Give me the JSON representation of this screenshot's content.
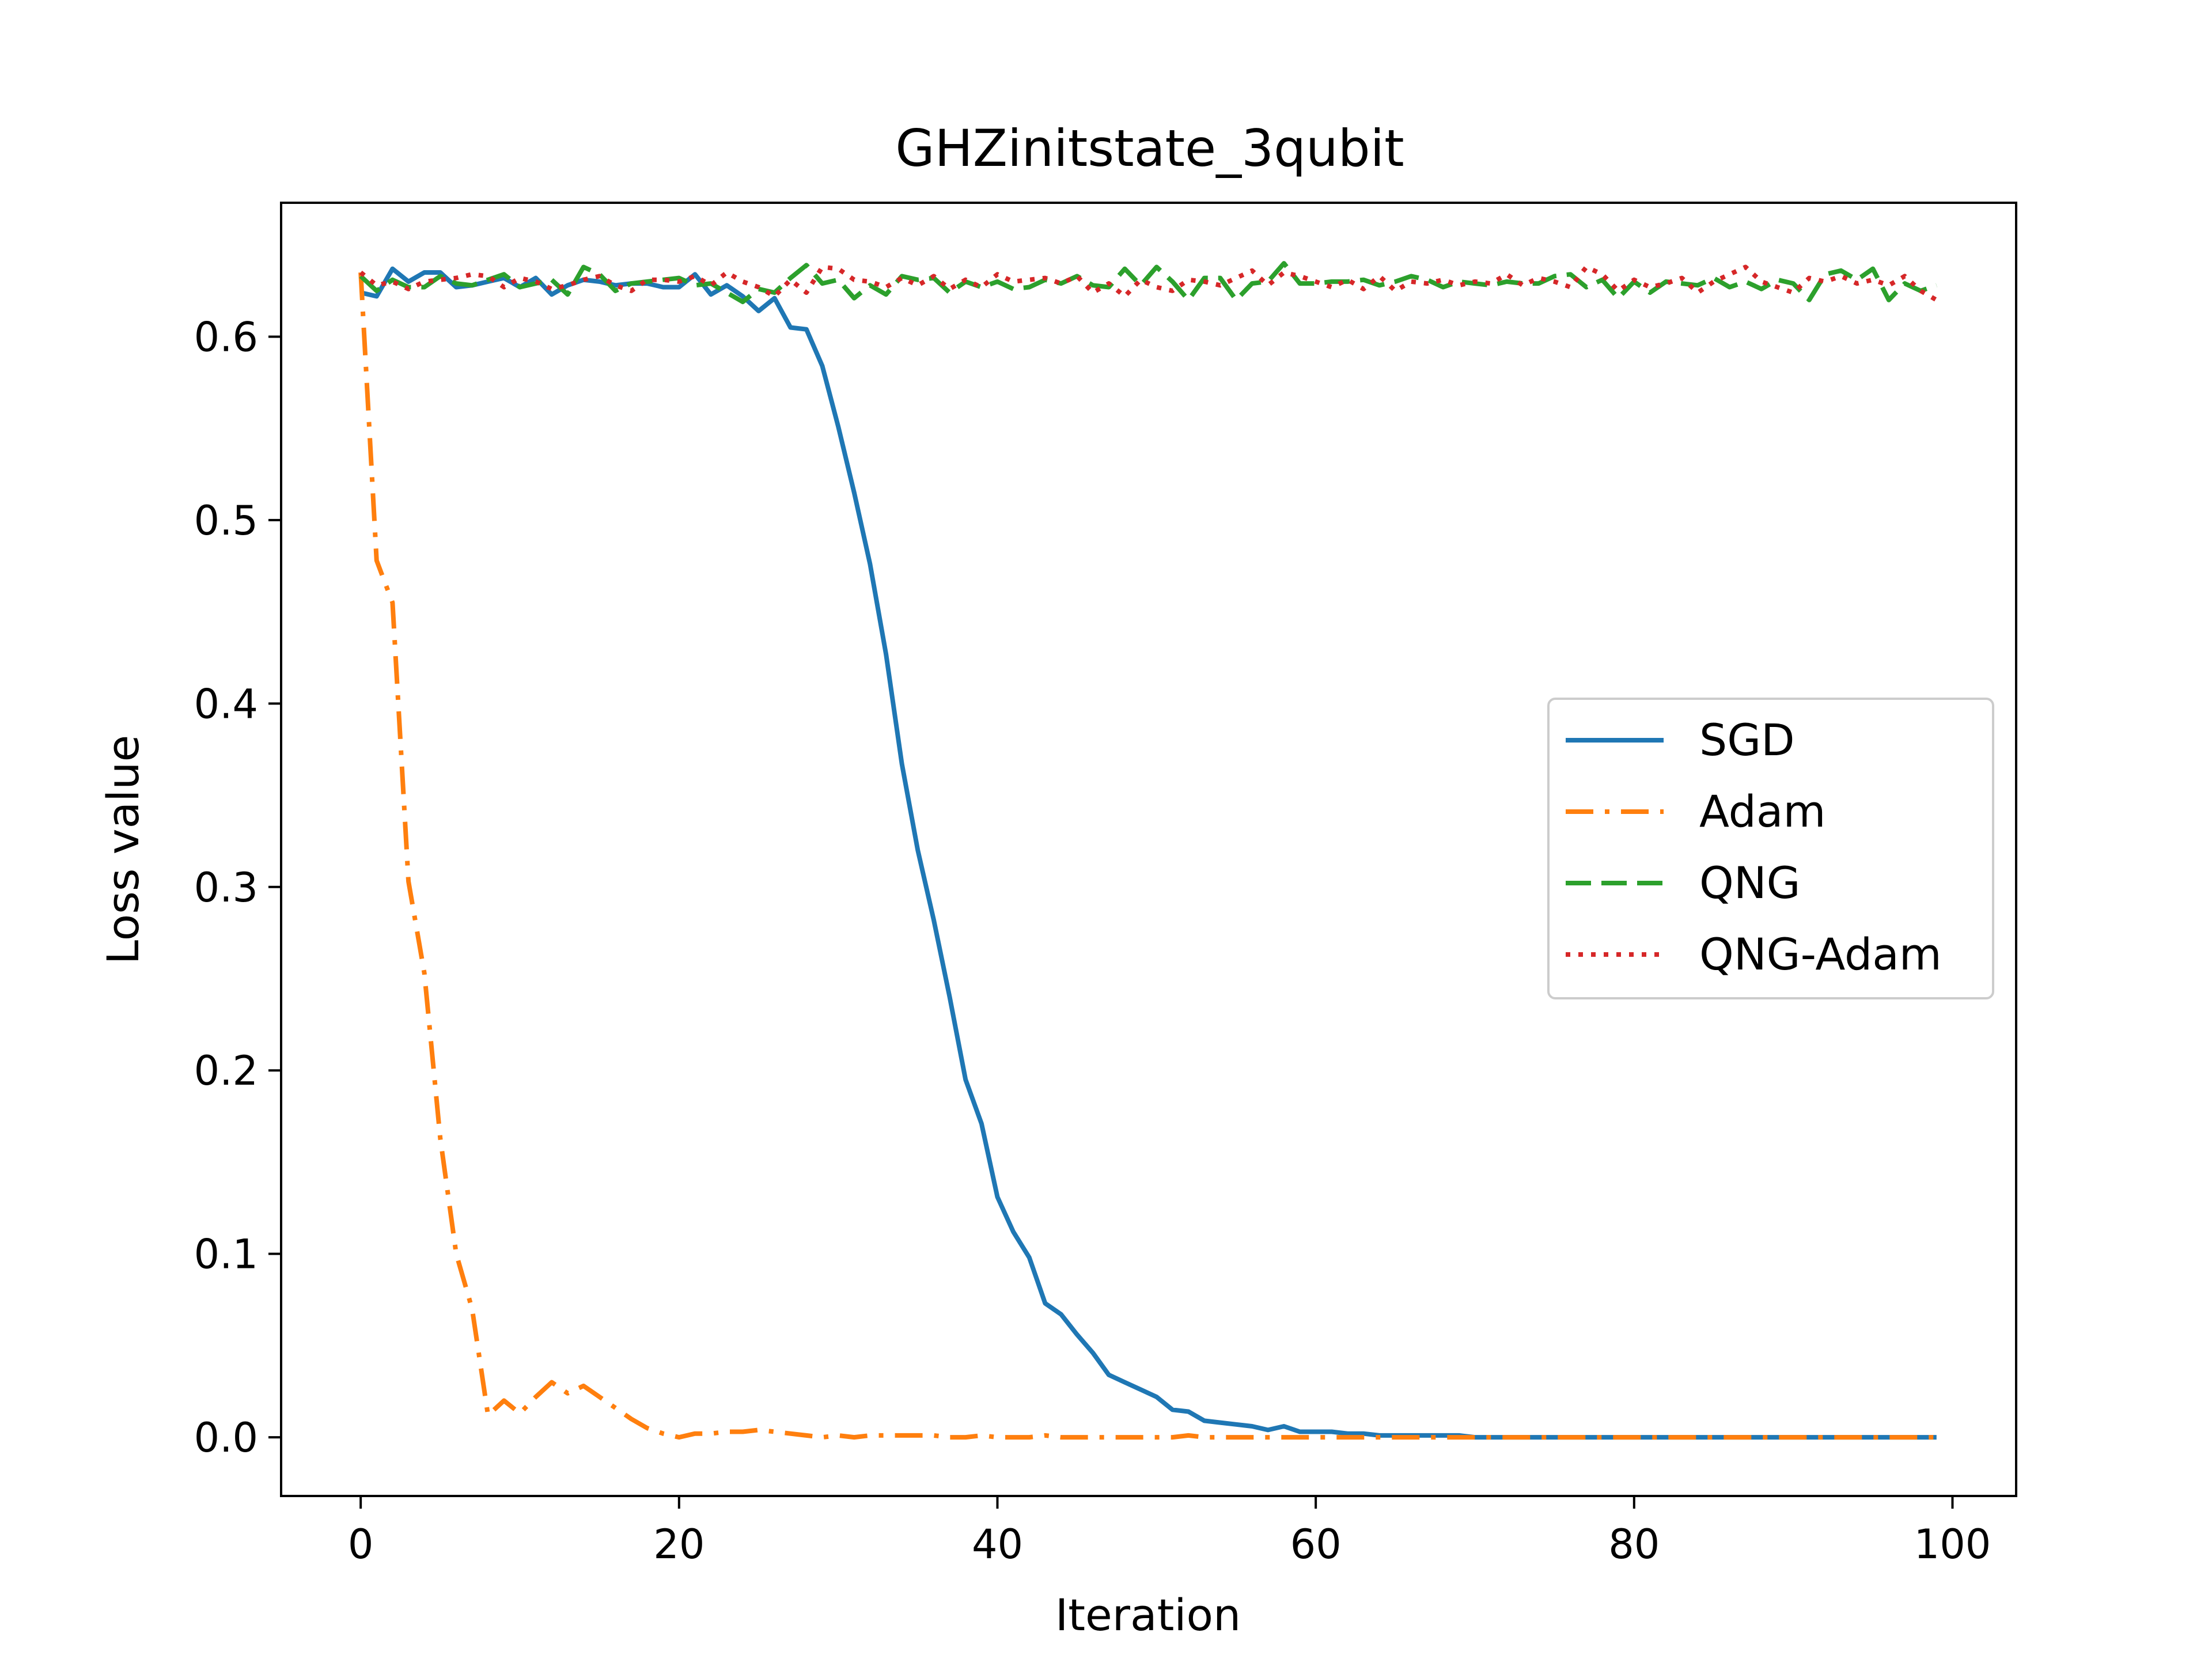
{
  "chart_data": {
    "type": "line",
    "title": "GHZinitstate_3qubit",
    "xlabel": "Iteration",
    "ylabel": "Loss value",
    "xlim": [
      -5,
      104
    ],
    "ylim": [
      -0.032,
      0.673
    ],
    "xticks": [
      0,
      20,
      40,
      60,
      80,
      100
    ],
    "xtick_labels": [
      "0",
      "20",
      "40",
      "60",
      "80",
      "100"
    ],
    "yticks": [
      0.0,
      0.1,
      0.2,
      0.3,
      0.4,
      0.5,
      0.6
    ],
    "ytick_labels": [
      "0.0",
      "0.1",
      "0.2",
      "0.3",
      "0.4",
      "0.5",
      "0.6"
    ],
    "grid": false,
    "legend": {
      "position": "center-right",
      "entries": [
        "SGD",
        "Adam",
        "QNG",
        "QNG-Adam"
      ]
    },
    "series": [
      {
        "name": "SGD",
        "color": "#1f77b4",
        "linestyle": "solid",
        "values": [
          0.624,
          0.622,
          0.637,
          0.63,
          0.635,
          0.635,
          0.627,
          0.628,
          0.63,
          0.632,
          0.627,
          0.632,
          0.623,
          0.628,
          0.631,
          0.63,
          0.628,
          0.629,
          0.629,
          0.627,
          0.627,
          0.634,
          0.623,
          0.628,
          0.622,
          0.614,
          0.621,
          0.605,
          0.604,
          0.584,
          0.551,
          0.515,
          0.476,
          0.427,
          0.367,
          0.32,
          0.282,
          0.24,
          0.195,
          0.171,
          0.131,
          0.112,
          0.098,
          0.073,
          0.067,
          0.056,
          0.046,
          0.034,
          0.03,
          0.026,
          0.022,
          0.015,
          0.014,
          0.009,
          0.008,
          0.007,
          0.006,
          0.004,
          0.006,
          0.003,
          0.003,
          0.003,
          0.002,
          0.002,
          0.001,
          0.001,
          0.001,
          0.001,
          0.001,
          0.001,
          0.0,
          0.0,
          0.0,
          0.0,
          0.0,
          0.0,
          0.0,
          0.0,
          0.0,
          0.0,
          0.0,
          0.0,
          0.0,
          0.0,
          0.0,
          0.0,
          0.0,
          0.0,
          0.0,
          0.0,
          0.0,
          0.0,
          0.0,
          0.0,
          0.0,
          0.0,
          0.0,
          0.0,
          0.0,
          0.0
        ]
      },
      {
        "name": "Adam",
        "color": "#ff7f0e",
        "linestyle": "dashdot",
        "values": [
          0.635,
          0.478,
          0.455,
          0.303,
          0.253,
          0.163,
          0.1,
          0.07,
          0.012,
          0.02,
          0.013,
          0.022,
          0.03,
          0.024,
          0.028,
          0.022,
          0.016,
          0.01,
          0.005,
          0.002,
          0.0,
          0.002,
          0.002,
          0.003,
          0.003,
          0.004,
          0.003,
          0.002,
          0.001,
          0.0,
          0.001,
          0.0,
          0.001,
          0.001,
          0.001,
          0.001,
          0.001,
          0.0,
          0.0,
          0.001,
          0.0,
          0.0,
          0.0,
          0.001,
          0.0,
          0.0,
          0.0,
          0.0,
          0.0,
          0.0,
          0.0,
          0.0,
          0.001,
          0.0,
          0.0,
          0.0,
          0.0,
          0.0,
          0.0,
          0.0,
          0.0,
          0.0,
          0.0,
          0.0,
          0.0,
          0.0,
          0.0,
          0.0,
          0.0,
          0.0,
          0.0,
          0.0,
          0.0,
          0.0,
          0.0,
          0.0,
          0.0,
          0.0,
          0.0,
          0.0,
          0.0,
          0.0,
          0.0,
          0.0,
          0.0,
          0.0,
          0.0,
          0.0,
          0.0,
          0.0,
          0.0,
          0.0,
          0.0,
          0.0,
          0.0,
          0.0,
          0.0,
          0.0,
          0.0,
          0.0
        ]
      },
      {
        "name": "QNG",
        "color": "#2ca02c",
        "linestyle": "dashed",
        "values": [
          0.633,
          0.625,
          0.631,
          0.627,
          0.627,
          0.633,
          0.629,
          0.628,
          0.631,
          0.634,
          0.627,
          0.629,
          0.631,
          0.623,
          0.638,
          0.634,
          0.625,
          0.629,
          0.63,
          0.631,
          0.632,
          0.628,
          0.629,
          0.624,
          0.619,
          0.626,
          0.624,
          0.632,
          0.639,
          0.629,
          0.631,
          0.621,
          0.628,
          0.623,
          0.633,
          0.631,
          0.632,
          0.624,
          0.63,
          0.627,
          0.63,
          0.626,
          0.627,
          0.631,
          0.629,
          0.633,
          0.628,
          0.627,
          0.637,
          0.628,
          0.638,
          0.63,
          0.62,
          0.632,
          0.632,
          0.62,
          0.629,
          0.63,
          0.64,
          0.629,
          0.629,
          0.63,
          0.63,
          0.631,
          0.628,
          0.63,
          0.633,
          0.631,
          0.627,
          0.63,
          0.629,
          0.628,
          0.63,
          0.629,
          0.629,
          0.633,
          0.634,
          0.627,
          0.631,
          0.621,
          0.63,
          0.624,
          0.63,
          0.629,
          0.628,
          0.632,
          0.627,
          0.63,
          0.626,
          0.631,
          0.629,
          0.62,
          0.634,
          0.636,
          0.631,
          0.637,
          0.62,
          0.629,
          0.625,
          0.628
        ]
      },
      {
        "name": "QNG-Adam",
        "color": "#d62728",
        "linestyle": "dotted",
        "values": [
          0.635,
          0.628,
          0.63,
          0.626,
          0.63,
          0.631,
          0.632,
          0.634,
          0.633,
          0.627,
          0.632,
          0.63,
          0.626,
          0.628,
          0.631,
          0.633,
          0.628,
          0.625,
          0.631,
          0.631,
          0.63,
          0.633,
          0.628,
          0.635,
          0.63,
          0.627,
          0.622,
          0.631,
          0.624,
          0.638,
          0.637,
          0.631,
          0.63,
          0.627,
          0.632,
          0.628,
          0.633,
          0.626,
          0.631,
          0.627,
          0.634,
          0.63,
          0.631,
          0.632,
          0.629,
          0.633,
          0.624,
          0.629,
          0.622,
          0.631,
          0.627,
          0.625,
          0.631,
          0.63,
          0.628,
          0.632,
          0.636,
          0.628,
          0.635,
          0.633,
          0.63,
          0.627,
          0.631,
          0.626,
          0.633,
          0.625,
          0.63,
          0.629,
          0.631,
          0.628,
          0.63,
          0.629,
          0.634,
          0.628,
          0.632,
          0.63,
          0.627,
          0.638,
          0.634,
          0.625,
          0.631,
          0.627,
          0.629,
          0.632,
          0.624,
          0.63,
          0.634,
          0.638,
          0.63,
          0.627,
          0.624,
          0.632,
          0.63,
          0.633,
          0.629,
          0.631,
          0.628,
          0.633,
          0.625,
          0.62
        ]
      }
    ]
  }
}
